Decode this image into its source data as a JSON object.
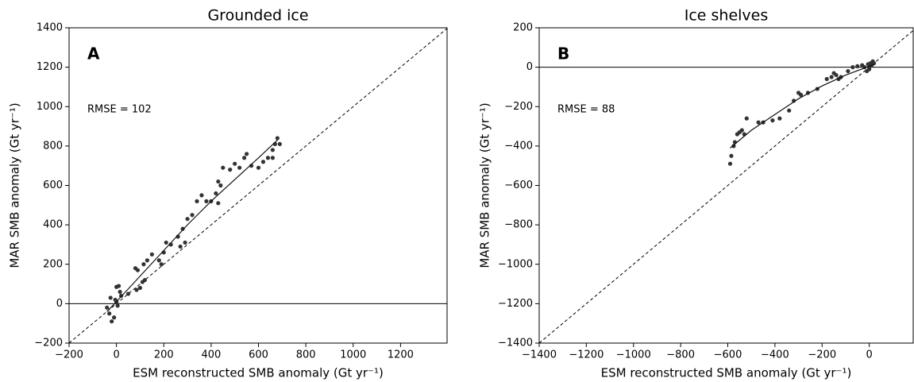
{
  "chart_data": [
    {
      "type": "scatter",
      "title": "Grounded ice",
      "panel_label": "A",
      "annotation": "RMSE = 102",
      "xlabel": "ESM reconstructed SMB anomaly (Gt yr⁻¹)",
      "ylabel": "MAR SMB anomaly (Gt yr⁻¹)",
      "color": "#333333",
      "x": [
        -40,
        -30,
        -20,
        -10,
        -25,
        0,
        5,
        10,
        0,
        15,
        20,
        -5,
        50,
        80,
        90,
        85,
        100,
        110,
        120,
        115,
        130,
        150,
        180,
        190,
        200,
        210,
        230,
        260,
        270,
        280,
        290,
        300,
        320,
        340,
        360,
        380,
        400,
        420,
        430,
        440,
        450,
        480,
        500,
        520,
        540,
        550,
        570,
        600,
        620,
        640,
        660,
        670,
        680,
        690,
        660,
        430
      ],
      "y": [
        -20,
        -50,
        -90,
        -70,
        30,
        10,
        -10,
        90,
        85,
        60,
        40,
        20,
        50,
        180,
        170,
        70,
        80,
        110,
        120,
        200,
        220,
        250,
        220,
        200,
        260,
        310,
        300,
        340,
        290,
        380,
        310,
        430,
        450,
        520,
        550,
        520,
        520,
        560,
        620,
        600,
        690,
        680,
        710,
        690,
        740,
        760,
        700,
        690,
        720,
        740,
        780,
        810,
        840,
        810,
        740,
        510
      ],
      "fit_x": [
        -40,
        0,
        100,
        200,
        300,
        400,
        500,
        600,
        680
      ],
      "fit_y": [
        -40,
        10,
        140,
        270,
        400,
        520,
        630,
        740,
        830
      ],
      "xlim": [
        -200,
        1400
      ],
      "ylim": [
        -200,
        1400
      ],
      "xticks": [
        {
          "value": -200,
          "label": "−200"
        },
        0,
        200,
        400,
        600,
        800,
        1000,
        1200
      ],
      "yticks": [
        {
          "value": -200,
          "label": "−200"
        },
        0,
        200,
        400,
        600,
        800,
        1000,
        1200,
        1400
      ],
      "identity_line": true,
      "zero_line": true
    },
    {
      "type": "scatter",
      "title": "Ice shelves",
      "panel_label": "B",
      "annotation": "RMSE = 88",
      "xlabel": "ESM reconstructed SMB anomaly (Gt yr⁻¹)",
      "ylabel": "MAR SMB anomaly (Gt yr⁻¹)",
      "color": "#333333",
      "x": [
        -590,
        -585,
        -575,
        -570,
        -560,
        -550,
        -540,
        -530,
        -520,
        -470,
        -450,
        -410,
        -380,
        -340,
        -320,
        -300,
        -290,
        -260,
        -220,
        -180,
        -160,
        -150,
        -140,
        -130,
        -120,
        -90,
        -70,
        -50,
        -30,
        -20,
        -10,
        0,
        5,
        10,
        15,
        20,
        -5,
        0
      ],
      "y": [
        -490,
        -450,
        -400,
        -380,
        -340,
        -330,
        -320,
        -340,
        -260,
        -280,
        -280,
        -270,
        -260,
        -220,
        -170,
        -130,
        -140,
        -130,
        -110,
        -60,
        -50,
        -30,
        -40,
        -60,
        -50,
        -20,
        0,
        5,
        10,
        0,
        -20,
        0,
        20,
        10,
        30,
        20,
        15,
        -10
      ],
      "fit_x": [
        -590,
        -500,
        -400,
        -300,
        -200,
        -100,
        0,
        20
      ],
      "fit_y": [
        -410,
        -320,
        -240,
        -160,
        -95,
        -40,
        5,
        15
      ],
      "xlim": [
        -1400,
        200
      ],
      "ylim": [
        -1400,
        200
      ],
      "xticks": [
        {
          "value": -1400,
          "label": "−1400"
        },
        {
          "value": -1200,
          "label": "−1200"
        },
        {
          "value": -1000,
          "label": "−1000"
        },
        {
          "value": -800,
          "label": "−800"
        },
        {
          "value": -600,
          "label": "−600"
        },
        {
          "value": -400,
          "label": "−400"
        },
        {
          "value": -200,
          "label": "−200"
        },
        0
      ],
      "yticks": [
        {
          "value": -1400,
          "label": "−1400"
        },
        {
          "value": -1200,
          "label": "−1200"
        },
        {
          "value": -1000,
          "label": "−1000"
        },
        {
          "value": -800,
          "label": "−800"
        },
        {
          "value": -600,
          "label": "−600"
        },
        {
          "value": -400,
          "label": "−400"
        },
        {
          "value": -200,
          "label": "−200"
        },
        0,
        200
      ],
      "identity_line": true,
      "zero_line": true
    }
  ]
}
